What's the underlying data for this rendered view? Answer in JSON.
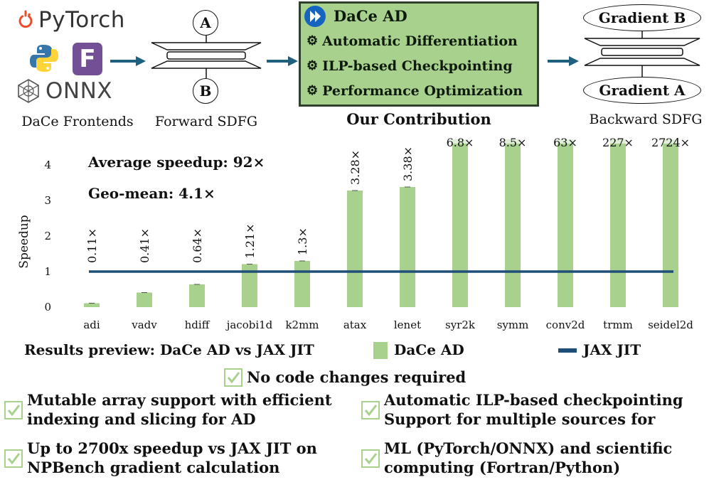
{
  "frontends": {
    "pytorch_label": "PyTorch",
    "fortran_letter": "F",
    "onnx_label": "ONNX",
    "caption": "DaCe Frontends"
  },
  "forward": {
    "node_a": "A",
    "node_b": "B",
    "caption": "Forward SDFG"
  },
  "contribution": {
    "title": "DaCe AD",
    "items": [
      "Automatic Differentiation",
      "ILP-based Checkpointing",
      "Performance Optimization"
    ],
    "caption": "Our Contribution"
  },
  "backward": {
    "node_top": "Gradient B",
    "node_bottom": "Gradient A",
    "caption": "Backward SDFG"
  },
  "colors": {
    "bar": "#a9d18e",
    "line": "#1f4e79",
    "arrow": "#1f5f7f",
    "pytorch": "#ee4c2c",
    "fortran": "#734f96"
  },
  "chart_data": {
    "type": "bar",
    "ylabel": "Speedup",
    "ylim": [
      0,
      4.6
    ],
    "yticks": [
      "0",
      "1",
      "2",
      "3",
      "4"
    ],
    "categories": [
      "adi",
      "vadv",
      "hdiff",
      "jacobi1d",
      "k2mm",
      "atax",
      "lenet",
      "syr2k",
      "symm",
      "conv2d",
      "trmm",
      "seidel2d"
    ],
    "values": [
      0.11,
      0.41,
      0.64,
      1.21,
      1.3,
      3.28,
      3.38,
      6.8,
      8.5,
      63,
      227,
      2724
    ],
    "value_labels": [
      "0.11×",
      "0.41×",
      "0.64×",
      "1.21×",
      "1.3×",
      "3.28×",
      "3.38×",
      "6.8×",
      "8.5×",
      "63×",
      "227×",
      "2724×"
    ],
    "baseline": 1,
    "annotation_avg": "Average speedup: 92×",
    "annotation_geo": "Geo-mean: 4.1×",
    "series": [
      {
        "name": "DaCe AD",
        "kind": "bar"
      },
      {
        "name": "JAX JIT",
        "kind": "line",
        "value": 1
      }
    ]
  },
  "legend": {
    "title": "Results preview: DaCe AD vs JAX JIT",
    "bar_label": "DaCe AD",
    "line_label": "JAX JIT"
  },
  "features": {
    "center": "No code changes required",
    "left1": [
      "Mutable array support with efficient",
      "indexing and slicing for AD"
    ],
    "left2": [
      "Up to 2700x speedup vs JAX JIT on",
      "NPBench gradient calculation"
    ],
    "right1": [
      "Automatic ILP-based checkpointing",
      "Support for multiple sources for"
    ],
    "right2": [
      "ML (PyTorch/ONNX) and scientific",
      "computing (Fortran/Python)"
    ]
  }
}
